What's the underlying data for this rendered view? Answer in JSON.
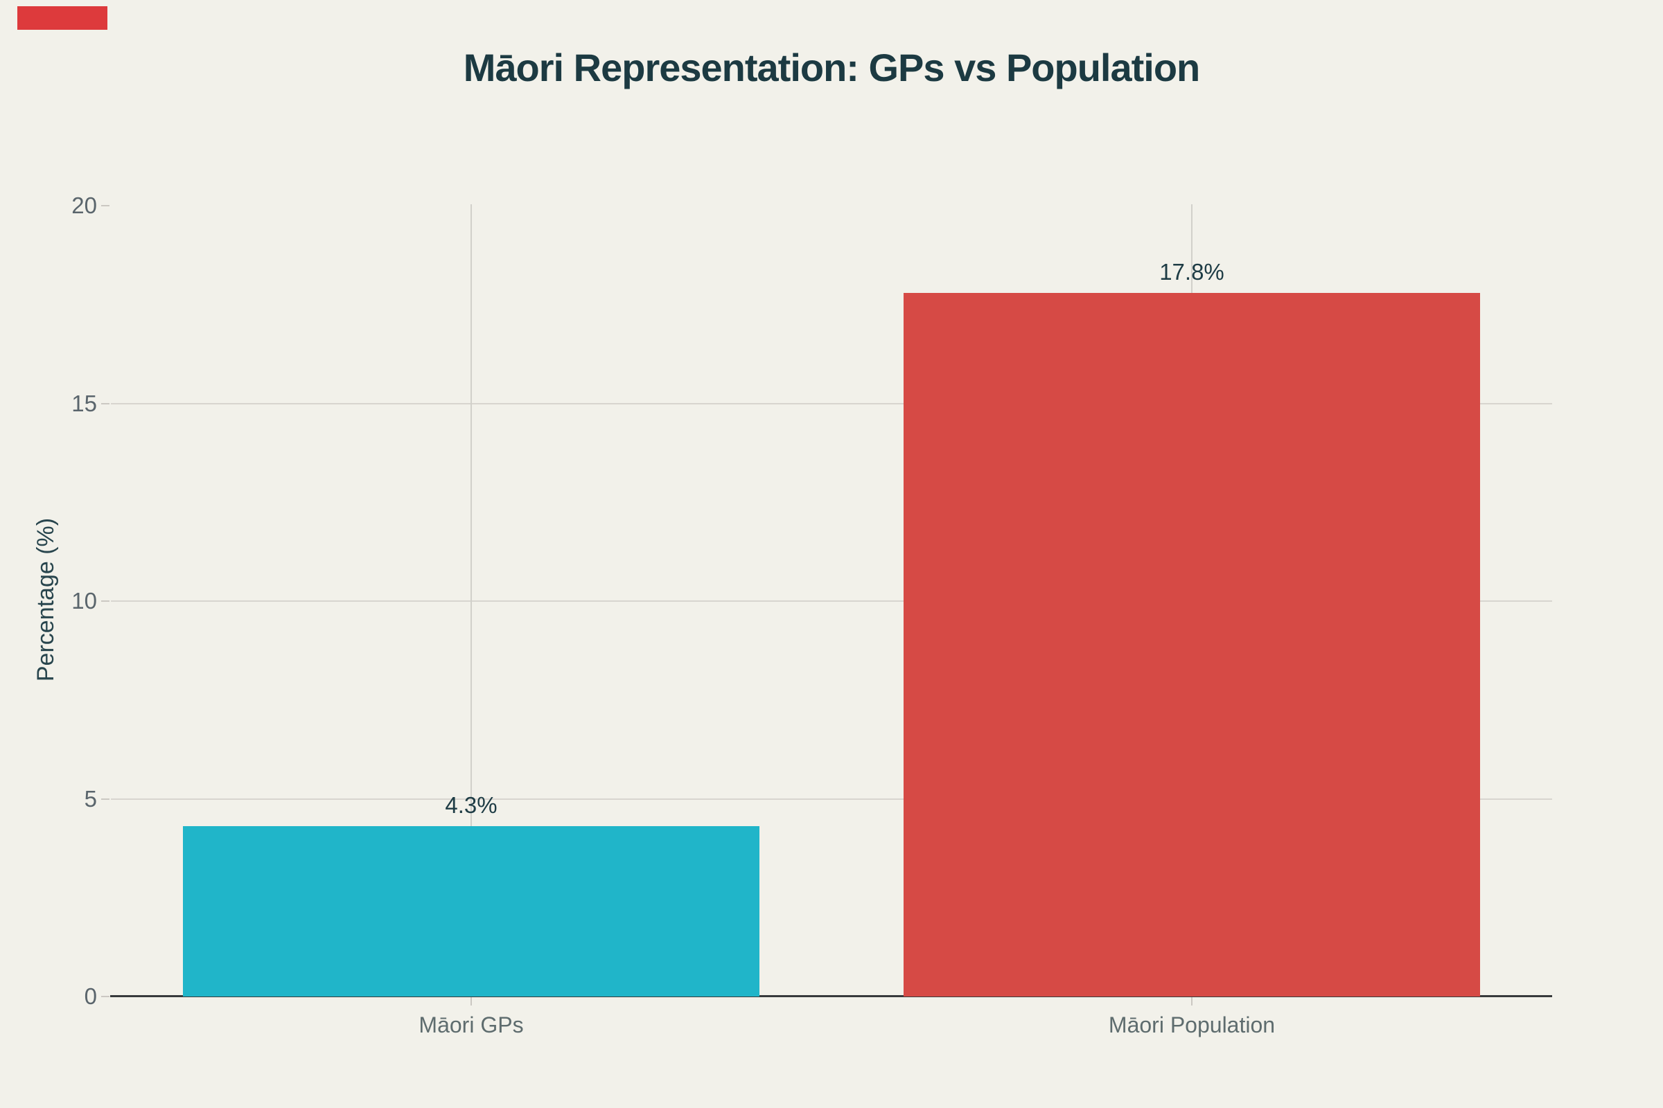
{
  "page": {
    "background": "#f2f1ea"
  },
  "corner_marker": {
    "color": "#dd3a3c"
  },
  "chart_data": {
    "type": "bar",
    "title": "Māori Representation: GPs vs Population",
    "categories": [
      "Māori GPs",
      "Māori Population"
    ],
    "values": [
      4.3,
      17.8
    ],
    "value_labels": [
      "4.3%",
      "17.8%"
    ],
    "bar_colors": [
      "#20b5c9",
      "#d64a45"
    ],
    "xlabel": "",
    "ylabel": "Percentage (%)",
    "ylim": [
      0,
      20
    ],
    "yticks": [
      0,
      5,
      10,
      15,
      20
    ],
    "ytick_labels": [
      "0",
      "5",
      "10",
      "15",
      "20"
    ],
    "gridline_values": [
      5,
      10,
      15
    ],
    "grid": true,
    "legend_position": "none"
  },
  "colors": {
    "title": "#1c3a42",
    "axis_line": "#37393b",
    "h_gridline": "#d8d5cf",
    "v_gridline": "#d1d0ca",
    "tick_mark": "#cbc8c2",
    "tick_label": "#5a656c",
    "category_label": "#5e6c6e",
    "value_label": "#1e3c45",
    "y_axis_title": "#28454d"
  }
}
